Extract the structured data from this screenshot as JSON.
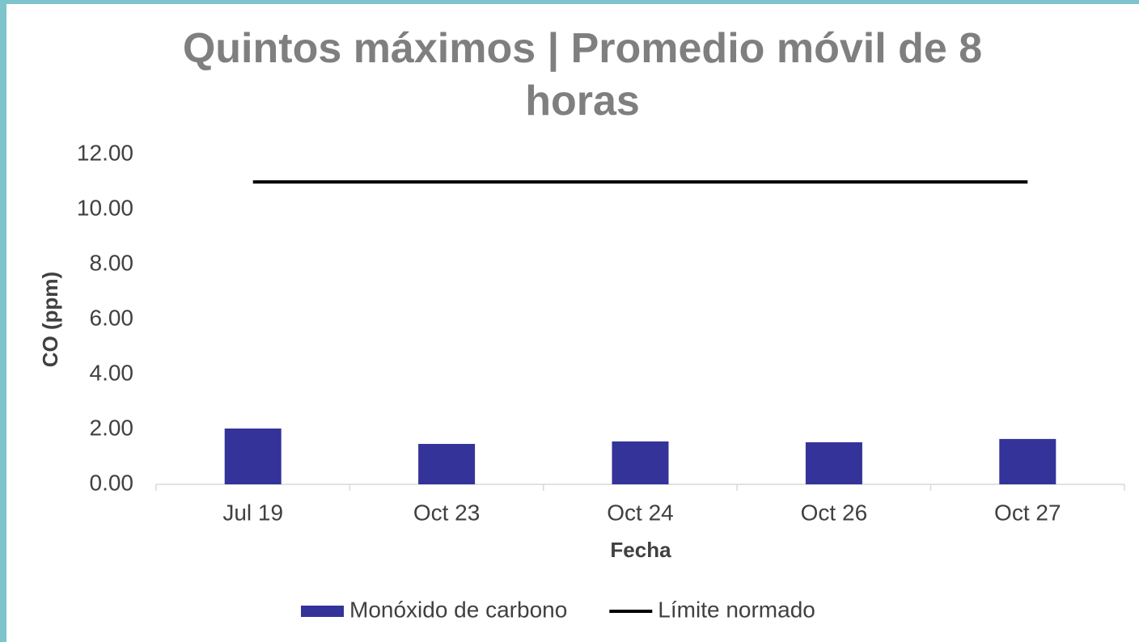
{
  "chart_data": {
    "type": "bar",
    "title": "Quintos máximos | Promedio móvil de 8 horas",
    "x_label": "Fecha",
    "y_label": "CO (ppm)",
    "categories": [
      "Jul 19",
      "Oct 23",
      "Oct 24",
      "Oct 26",
      "Oct 27"
    ],
    "series": [
      {
        "name": "Monóxido de carbono",
        "type": "bar",
        "color": "#333399",
        "values": [
          2.03,
          1.47,
          1.56,
          1.53,
          1.65
        ]
      },
      {
        "name": "Límite normado",
        "type": "line",
        "color": "#000000",
        "values": [
          11,
          11,
          11,
          11,
          11
        ]
      }
    ],
    "ylim": [
      0,
      12
    ],
    "yticks": [
      {
        "value": 0,
        "label": "0.00"
      },
      {
        "value": 2,
        "label": "2.00"
      },
      {
        "value": 4,
        "label": "4.00"
      },
      {
        "value": 6,
        "label": "6.00"
      },
      {
        "value": 8,
        "label": "8.00"
      },
      {
        "value": 10,
        "label": "10.00"
      },
      {
        "value": 12,
        "label": "12.00"
      }
    ],
    "grid": false,
    "legend": "bottom"
  }
}
